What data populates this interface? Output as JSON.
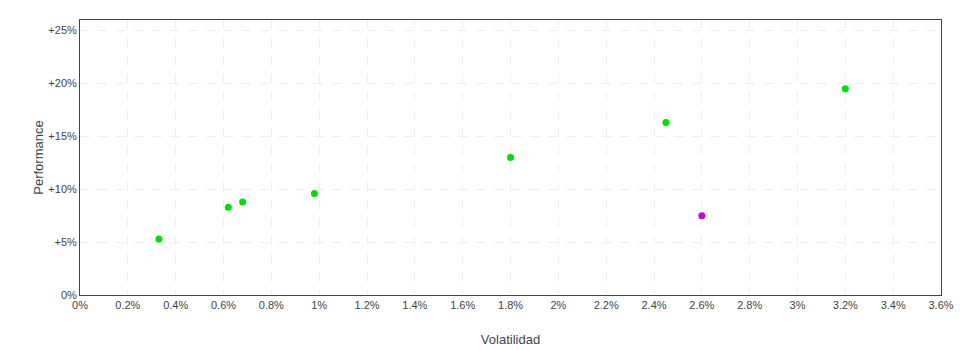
{
  "chart_data": {
    "type": "scatter",
    "xlabel": "Volatilidad",
    "ylabel": "Performance",
    "series": [
      {
        "color": "#00dd00",
        "x": [
          0.0033,
          0.0062,
          0.0068,
          0.0098,
          0.018,
          0.0245,
          0.032
        ],
        "values": [
          0.053,
          0.083,
          0.088,
          0.096,
          0.13,
          0.163,
          0.195
        ]
      },
      {
        "color": "#cc00cc",
        "x": [
          0.026
        ],
        "values": [
          0.075
        ]
      }
    ],
    "xlim": [
      0.0,
      0.036
    ],
    "ylim": [
      0.0,
      0.26
    ],
    "xticks": [
      {
        "value": 0,
        "label": "0%"
      },
      {
        "value": 0.002,
        "label": "0.2%"
      },
      {
        "value": 0.004,
        "label": "0.4%"
      },
      {
        "value": 0.006,
        "label": "0.6%"
      },
      {
        "value": 0.008,
        "label": "0.8%"
      },
      {
        "value": 0.01,
        "label": "1%"
      },
      {
        "value": 0.012,
        "label": "1.2%"
      },
      {
        "value": 0.014,
        "label": "1.4%"
      },
      {
        "value": 0.016,
        "label": "1.6%"
      },
      {
        "value": 0.018,
        "label": "1.8%"
      },
      {
        "value": 0.02,
        "label": "2%"
      },
      {
        "value": 0.022,
        "label": "2.2%"
      },
      {
        "value": 0.024,
        "label": "2.4%"
      },
      {
        "value": 0.026,
        "label": "2.6%"
      },
      {
        "value": 0.028,
        "label": "2.8%"
      },
      {
        "value": 0.03,
        "label": "3%"
      },
      {
        "value": 0.032,
        "label": "3.2%"
      },
      {
        "value": 0.034,
        "label": "3.4%"
      },
      {
        "value": 0.036,
        "label": "3.6%"
      }
    ],
    "yticks": [
      {
        "value": 0,
        "label": "0%"
      },
      {
        "value": 0.05,
        "label": "+5%"
      },
      {
        "value": 0.1,
        "label": "+10%"
      },
      {
        "value": 0.15,
        "label": "+15%"
      },
      {
        "value": 0.2,
        "label": "+20%"
      },
      {
        "value": 0.25,
        "label": "+25%"
      }
    ],
    "grid": true
  }
}
